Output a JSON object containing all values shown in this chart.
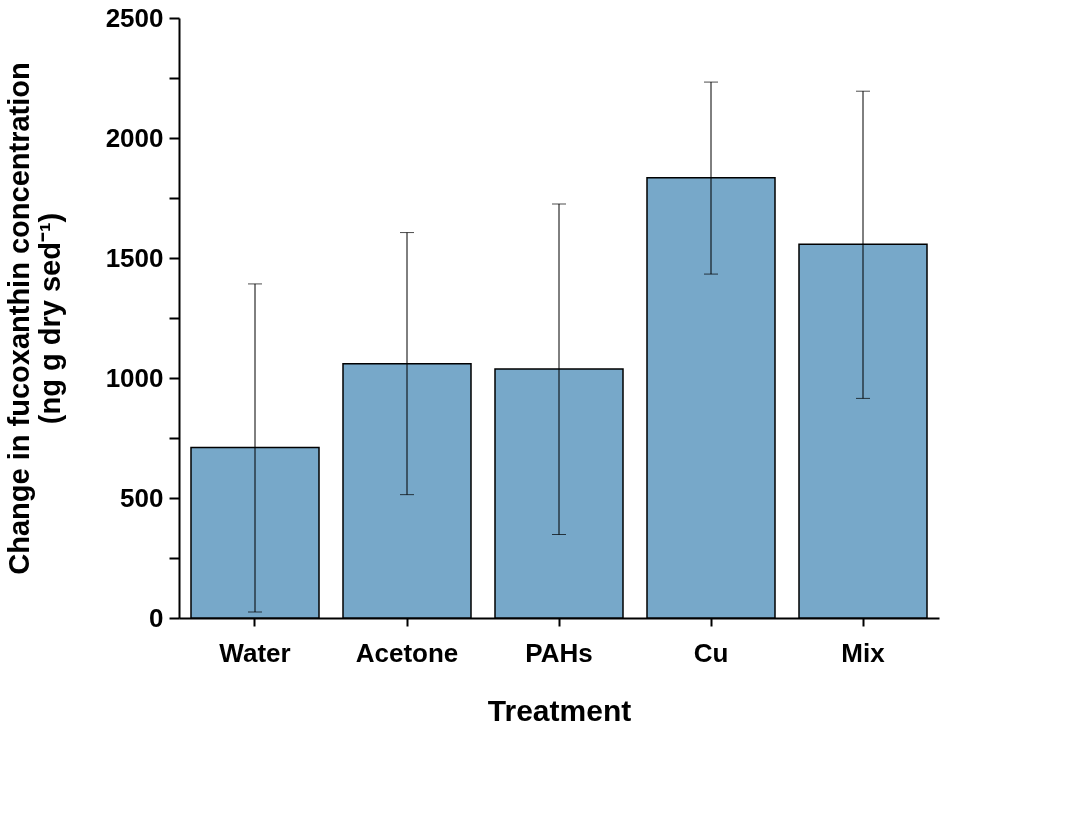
{
  "chart_data": {
    "type": "bar",
    "xlabel": "Treatment",
    "ylabel": "Change in fucoxanthin concentration\n(ng g dry sed⁻¹)",
    "categories": [
      "Water",
      "Acetone",
      "PAHs",
      "Cu",
      "Mix"
    ],
    "series": [
      {
        "color": "#77a8c9",
        "values": [
          710,
          1059,
          1037,
          1834,
          1557
        ],
        "errors": [
          [
            25,
            1392
          ],
          [
            514,
            1606
          ],
          [
            348,
            1725
          ],
          [
            1433,
            2233
          ],
          [
            915,
            2195
          ]
        ]
      }
    ],
    "ylim": [
      0,
      2500
    ],
    "yticks": [
      0,
      {
        "value": 250,
        "label": null
      },
      500,
      {
        "value": 750,
        "label": null
      },
      1000,
      {
        "value": 1250,
        "label": null
      },
      1500,
      {
        "value": 1750,
        "label": null
      },
      2000,
      {
        "value": 2250,
        "label": null
      },
      2500
    ],
    "grid": false
  }
}
